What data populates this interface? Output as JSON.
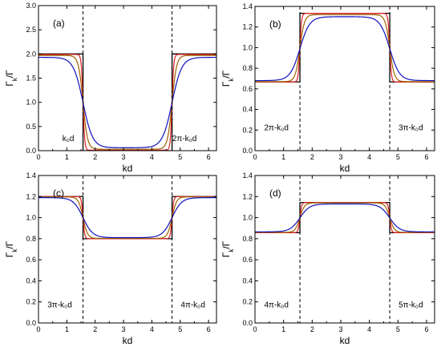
{
  "chart_data": [
    {
      "type": "line",
      "panel_label": "(a)",
      "xlabel": "kd",
      "ylabel": "Γk/Γ",
      "xlim": [
        0,
        6.28
      ],
      "ylim": [
        0,
        3.0
      ],
      "xticks": [
        "0",
        "1",
        "2",
        "3",
        "4",
        "5",
        "6"
      ],
      "yticks": [
        "0.0",
        "0.5",
        "1.0",
        "1.5",
        "2.0",
        "2.5",
        "3.0"
      ],
      "vlines": [
        1.571,
        4.712
      ],
      "annotations": [
        {
          "text": "k₀d",
          "x": 1.05,
          "y": 0.2
        },
        {
          "text": "2π-k₀d",
          "x": 5.15,
          "y": 0.2
        }
      ],
      "series": [
        {
          "color": "#000000",
          "kind": "step",
          "outside": 2.0,
          "inside": 0.0,
          "width": 0
        },
        {
          "color": "#e02020",
          "kind": "smooth",
          "outside": 1.99,
          "inside": 0.01,
          "width": 0.03
        },
        {
          "color": "#a06000",
          "kind": "smooth",
          "outside": 1.97,
          "inside": 0.03,
          "width": 0.08
        },
        {
          "color": "#1010c0",
          "kind": "smooth",
          "outside": 1.93,
          "inside": 0.06,
          "width": 0.17
        }
      ]
    },
    {
      "type": "line",
      "panel_label": "(b)",
      "xlabel": "kd",
      "ylabel": "Γk/Γ",
      "xlim": [
        0,
        6.28
      ],
      "ylim": [
        0,
        1.4
      ],
      "xticks": [
        "0",
        "1",
        "2",
        "3",
        "4",
        "5",
        "6"
      ],
      "yticks": [
        "0.0",
        "0.2",
        "0.4",
        "0.6",
        "0.8",
        "1.0",
        "1.2",
        "1.4"
      ],
      "vlines": [
        1.571,
        4.712
      ],
      "annotations": [
        {
          "text": "2π-k₀d",
          "x": 0.75,
          "y": 0.2
        },
        {
          "text": "3π-k₀d",
          "x": 5.45,
          "y": 0.2
        }
      ],
      "series": [
        {
          "color": "#000000",
          "kind": "step",
          "outside": 0.667,
          "inside": 1.333,
          "width": 0
        },
        {
          "color": "#e02020",
          "kind": "smooth",
          "outside": 0.667,
          "inside": 1.333,
          "width": 0.03
        },
        {
          "color": "#a06000",
          "kind": "smooth",
          "outside": 0.67,
          "inside": 1.32,
          "width": 0.08
        },
        {
          "color": "#1010c0",
          "kind": "smooth",
          "outside": 0.68,
          "inside": 1.3,
          "width": 0.17
        }
      ]
    },
    {
      "type": "line",
      "panel_label": "(c)",
      "xlabel": "kd",
      "ylabel": "Γk/Γ",
      "xlim": [
        0,
        6.28
      ],
      "ylim": [
        0,
        1.4
      ],
      "xticks": [
        "0",
        "1",
        "2",
        "3",
        "4",
        "5",
        "6"
      ],
      "yticks": [
        "0.0",
        "0.2",
        "0.4",
        "0.6",
        "0.8",
        "1.0",
        "1.2",
        "1.4"
      ],
      "vlines": [
        1.571,
        4.712
      ],
      "annotations": [
        {
          "text": "3π-k₀d",
          "x": 0.75,
          "y": 0.15
        },
        {
          "text": "4π-k₀d",
          "x": 5.45,
          "y": 0.15
        }
      ],
      "series": [
        {
          "color": "#000000",
          "kind": "step",
          "outside": 1.2,
          "inside": 0.8,
          "width": 0
        },
        {
          "color": "#e02020",
          "kind": "smooth",
          "outside": 1.2,
          "inside": 0.8,
          "width": 0.03
        },
        {
          "color": "#a06000",
          "kind": "smooth",
          "outside": 1.197,
          "inside": 0.803,
          "width": 0.08
        },
        {
          "color": "#1010c0",
          "kind": "smooth",
          "outside": 1.19,
          "inside": 0.81,
          "width": 0.17
        }
      ]
    },
    {
      "type": "line",
      "panel_label": "(d)",
      "xlabel": "kd",
      "ylabel": "Γk/Γ",
      "xlim": [
        0,
        6.28
      ],
      "ylim": [
        0,
        1.4
      ],
      "xticks": [
        "0",
        "1",
        "2",
        "3",
        "4",
        "5",
        "6"
      ],
      "yticks": [
        "0.0",
        "0.2",
        "0.4",
        "0.6",
        "0.8",
        "1.0",
        "1.2",
        "1.4"
      ],
      "vlines": [
        1.571,
        4.712
      ],
      "annotations": [
        {
          "text": "4π-k₀d",
          "x": 0.75,
          "y": 0.15
        },
        {
          "text": "5π-k₀d",
          "x": 5.45,
          "y": 0.15
        }
      ],
      "series": [
        {
          "color": "#000000",
          "kind": "step",
          "outside": 0.857,
          "inside": 1.143,
          "width": 0
        },
        {
          "color": "#e02020",
          "kind": "smooth",
          "outside": 0.857,
          "inside": 1.143,
          "width": 0.03
        },
        {
          "color": "#a06000",
          "kind": "smooth",
          "outside": 0.86,
          "inside": 1.14,
          "width": 0.08
        },
        {
          "color": "#1010c0",
          "kind": "smooth",
          "outside": 0.865,
          "inside": 1.13,
          "width": 0.17
        }
      ]
    }
  ]
}
